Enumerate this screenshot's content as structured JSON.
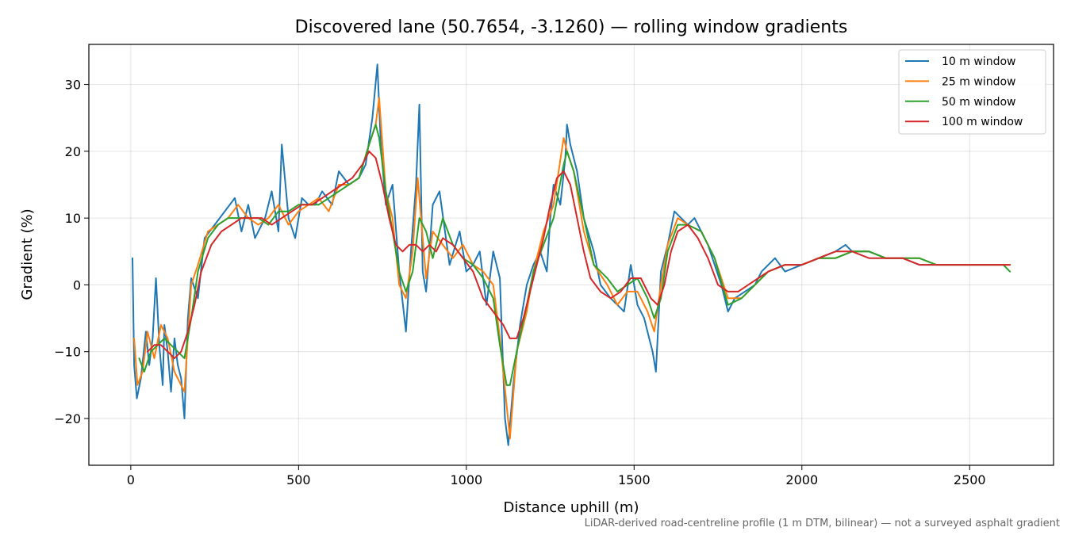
{
  "chart_data": {
    "type": "line",
    "title": "Discovered lane (50.7654, -3.1260) — rolling window gradients",
    "xlabel": "Distance uphill (m)",
    "ylabel": "Gradient (%)",
    "footnote": "LiDAR-derived road-centreline profile (1 m DTM, bilinear) — not a surveyed asphalt gradient",
    "xlim": [
      -125,
      2750
    ],
    "ylim": [
      -27,
      36
    ],
    "xticks": [
      0,
      500,
      1000,
      1500,
      2000,
      2500
    ],
    "xtick_labels": [
      "0",
      "500",
      "1000",
      "1500",
      "2000",
      "2500"
    ],
    "yticks": [
      -20,
      -10,
      0,
      10,
      20,
      30
    ],
    "ytick_labels": [
      "−20",
      "−10",
      "0",
      "10",
      "20",
      "30"
    ],
    "grid": true,
    "legend_position": "top-right",
    "series": [
      {
        "name": "10 m window",
        "color": "#1f77b4",
        "x": [
          5,
          10,
          18,
          30,
          45,
          55,
          65,
          75,
          85,
          95,
          100,
          110,
          120,
          130,
          140,
          150,
          160,
          170,
          180,
          200,
          220,
          250,
          280,
          310,
          330,
          350,
          370,
          400,
          420,
          440,
          450,
          470,
          490,
          510,
          530,
          550,
          570,
          600,
          620,
          650,
          680,
          700,
          720,
          735,
          745,
          760,
          780,
          800,
          820,
          835,
          850,
          860,
          870,
          880,
          890,
          900,
          920,
          950,
          980,
          1000,
          1020,
          1040,
          1060,
          1080,
          1100,
          1115,
          1125,
          1140,
          1160,
          1180,
          1200,
          1220,
          1240,
          1250,
          1260,
          1280,
          1295,
          1300,
          1310,
          1330,
          1350,
          1380,
          1400,
          1430,
          1450,
          1470,
          1490,
          1510,
          1530,
          1545,
          1555,
          1565,
          1580,
          1600,
          1620,
          1640,
          1660,
          1680,
          1700,
          1720,
          1740,
          1760,
          1780,
          1800,
          1830,
          1860,
          1880,
          1900,
          1920,
          1950,
          2000,
          2050,
          2100,
          2130,
          2150,
          2200,
          2250,
          2300,
          2350,
          2400,
          2450,
          2500,
          2550,
          2600,
          2620
        ],
        "y": [
          4,
          -12,
          -17,
          -14,
          -7,
          -12,
          -8,
          1,
          -9,
          -15,
          -6,
          -10,
          -16,
          -8,
          -12,
          -14,
          -20,
          -5,
          1,
          -2,
          7,
          9,
          11,
          13,
          8,
          12,
          7,
          10,
          14,
          8,
          21,
          10,
          7,
          13,
          12,
          12,
          14,
          12,
          17,
          15,
          16,
          18,
          25,
          33,
          21,
          12,
          15,
          2,
          -7,
          5,
          15,
          27,
          2,
          -1,
          5,
          12,
          14,
          3,
          8,
          2,
          3,
          5,
          -3,
          5,
          1,
          -20,
          -24,
          -15,
          -6,
          0,
          3,
          5,
          2,
          10,
          15,
          12,
          19,
          24,
          21,
          17,
          10,
          5,
          0,
          -2,
          -3,
          -4,
          3,
          -3,
          -5,
          -8,
          -10,
          -13,
          2,
          6,
          11,
          10,
          9,
          10,
          8,
          6,
          3,
          0,
          -4,
          -2,
          -1,
          0,
          2,
          3,
          4,
          2,
          3,
          4,
          5,
          6,
          5,
          5,
          4,
          4,
          3,
          3,
          3,
          3,
          3,
          3,
          3
        ]
      },
      {
        "name": "25 m window",
        "color": "#ff7f0e",
        "x": [
          10,
          20,
          35,
          50,
          70,
          90,
          110,
          130,
          150,
          160,
          180,
          200,
          230,
          260,
          290,
          320,
          350,
          380,
          410,
          440,
          470,
          500,
          530,
          560,
          590,
          620,
          650,
          680,
          710,
          730,
          740,
          760,
          780,
          800,
          820,
          840,
          855,
          865,
          880,
          900,
          930,
          960,
          990,
          1020,
          1050,
          1080,
          1100,
          1120,
          1130,
          1150,
          1180,
          1200,
          1230,
          1260,
          1290,
          1300,
          1320,
          1350,
          1380,
          1420,
          1450,
          1480,
          1510,
          1540,
          1560,
          1580,
          1600,
          1630,
          1660,
          1700,
          1740,
          1780,
          1820,
          1860,
          1900,
          1950,
          2000,
          2050,
          2100,
          2150,
          2200,
          2250,
          2300,
          2350,
          2400,
          2450,
          2500,
          2550,
          2600,
          2620
        ],
        "y": [
          -8,
          -15,
          -13,
          -7,
          -11,
          -6,
          -8,
          -13,
          -15,
          -16,
          0,
          3,
          8,
          9,
          10,
          12,
          10,
          9,
          10,
          12,
          9,
          11,
          12,
          13,
          11,
          15,
          15,
          16,
          21,
          24,
          28,
          14,
          10,
          0,
          -2,
          5,
          16,
          10,
          1,
          8,
          6,
          4,
          6,
          3,
          2,
          0,
          -8,
          -18,
          -23,
          -10,
          -4,
          2,
          8,
          12,
          22,
          20,
          17,
          8,
          3,
          0,
          -3,
          -1,
          -1,
          -4,
          -7,
          0,
          6,
          10,
          9,
          8,
          4,
          -2,
          -2,
          0,
          2,
          3,
          3,
          4,
          4,
          5,
          5,
          4,
          4,
          4,
          3,
          3,
          3,
          3,
          3,
          3
        ]
      },
      {
        "name": "50 m window",
        "color": "#2ca02c",
        "x": [
          25,
          40,
          60,
          80,
          100,
          120,
          140,
          160,
          180,
          200,
          230,
          260,
          290,
          320,
          350,
          380,
          410,
          440,
          470,
          500,
          530,
          560,
          590,
          620,
          650,
          680,
          710,
          730,
          740,
          760,
          780,
          800,
          820,
          840,
          860,
          880,
          900,
          930,
          960,
          990,
          1020,
          1050,
          1080,
          1100,
          1120,
          1130,
          1150,
          1180,
          1200,
          1230,
          1260,
          1290,
          1300,
          1320,
          1350,
          1380,
          1420,
          1450,
          1480,
          1510,
          1540,
          1560,
          1580,
          1600,
          1630,
          1660,
          1700,
          1740,
          1780,
          1820,
          1860,
          1900,
          1950,
          2000,
          2050,
          2100,
          2150,
          2200,
          2250,
          2300,
          2350,
          2400,
          2450,
          2500,
          2550,
          2600,
          2620
        ],
        "y": [
          -11,
          -13,
          -10,
          -9,
          -8,
          -9,
          -10,
          -11,
          -5,
          2,
          7,
          9,
          10,
          10,
          10,
          10,
          9,
          11,
          11,
          12,
          12,
          12,
          13,
          14,
          15,
          16,
          21,
          24,
          22,
          14,
          8,
          2,
          -1,
          2,
          10,
          8,
          4,
          10,
          6,
          4,
          3,
          1,
          -2,
          -9,
          -15,
          -15,
          -10,
          -3,
          2,
          6,
          10,
          18,
          20,
          17,
          10,
          3,
          1,
          -1,
          0,
          1,
          -2,
          -5,
          -2,
          5,
          9,
          9,
          8,
          4,
          -3,
          -2,
          0,
          2,
          3,
          3,
          4,
          4,
          5,
          5,
          4,
          4,
          4,
          3,
          3,
          3,
          3,
          3,
          2
        ]
      },
      {
        "name": "100 m window",
        "color": "#d62728",
        "x": [
          50,
          70,
          90,
          110,
          130,
          150,
          170,
          190,
          210,
          240,
          270,
          300,
          330,
          360,
          390,
          420,
          450,
          480,
          510,
          540,
          570,
          600,
          630,
          660,
          690,
          710,
          730,
          750,
          770,
          790,
          810,
          830,
          850,
          870,
          890,
          910,
          930,
          960,
          990,
          1020,
          1050,
          1080,
          1110,
          1130,
          1150,
          1170,
          1190,
          1210,
          1230,
          1250,
          1270,
          1290,
          1310,
          1330,
          1350,
          1370,
          1400,
          1430,
          1460,
          1490,
          1520,
          1550,
          1570,
          1590,
          1610,
          1630,
          1660,
          1690,
          1720,
          1750,
          1780,
          1810,
          1840,
          1870,
          1900,
          1950,
          2000,
          2050,
          2100,
          2150,
          2200,
          2250,
          2300,
          2350,
          2400,
          2450,
          2500,
          2550,
          2600,
          2620
        ],
        "y": [
          -10,
          -9,
          -9,
          -10,
          -11,
          -10,
          -7,
          -3,
          2,
          6,
          8,
          9,
          10,
          10,
          10,
          9,
          10,
          11,
          12,
          12,
          13,
          14,
          15,
          16,
          18,
          20,
          19,
          15,
          10,
          6,
          5,
          6,
          6,
          5,
          6,
          5,
          7,
          6,
          4,
          2,
          -2,
          -4,
          -6,
          -8,
          -8,
          -5,
          -1,
          3,
          7,
          12,
          16,
          17,
          15,
          10,
          5,
          1,
          -1,
          -2,
          -1,
          1,
          1,
          -2,
          -3,
          0,
          5,
          8,
          9,
          7,
          4,
          0,
          -1,
          -1,
          0,
          1,
          2,
          3,
          3,
          4,
          5,
          5,
          4,
          4,
          4,
          3,
          3,
          3,
          3,
          3,
          3,
          3
        ]
      }
    ]
  }
}
